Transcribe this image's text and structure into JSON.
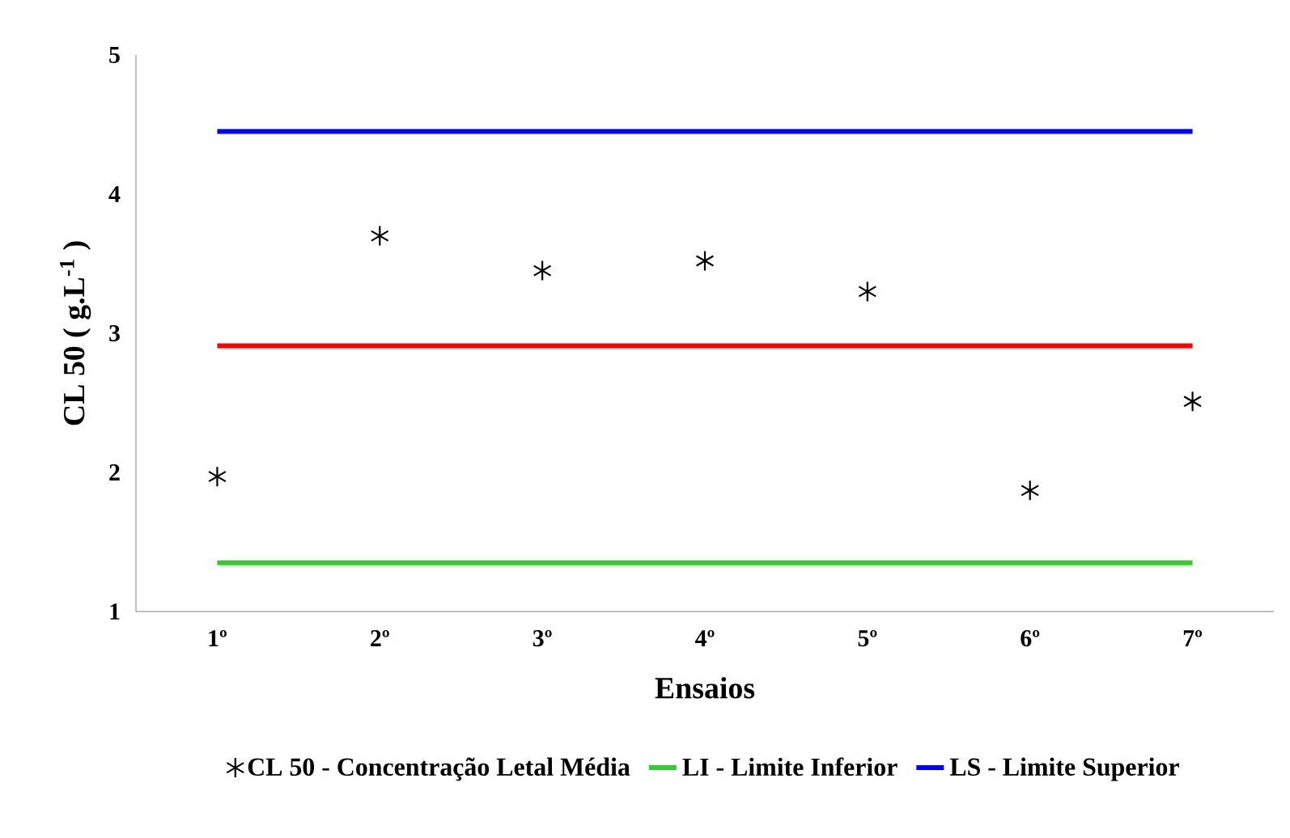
{
  "chart_data": {
    "type": "scatter",
    "xlabel": "Ensaios",
    "ylabel": "CL 50 ( g.L$^{-1}$ )",
    "categories": [
      "1º",
      "2º",
      "3º",
      "4º",
      "5º",
      "6º",
      "7º"
    ],
    "ylim": [
      1,
      5
    ],
    "yticks": [
      1,
      2,
      3,
      4,
      5
    ],
    "grid": false,
    "legend": "bottom",
    "series": [
      {
        "name": "CL 50 - Concentração Letal Média",
        "marker": "cross",
        "color": "#000000",
        "values": [
          1.97,
          3.7,
          3.45,
          3.52,
          3.3,
          1.87,
          2.51
        ]
      },
      {
        "name": "LI - Limite Inferior",
        "type": "line",
        "color": "#33cc33",
        "values": [
          1.35,
          1.35,
          1.35,
          1.35,
          1.35,
          1.35,
          1.35
        ]
      },
      {
        "name": "LS - Limite Superior",
        "type": "line",
        "color": "#0000ff",
        "values": [
          4.45,
          4.45,
          4.45,
          4.45,
          4.45,
          4.45,
          4.45
        ]
      },
      {
        "type": "line",
        "color": "#ff0000",
        "values": [
          2.91,
          2.91,
          2.91,
          2.91,
          2.91,
          2.91,
          2.91
        ]
      }
    ]
  }
}
